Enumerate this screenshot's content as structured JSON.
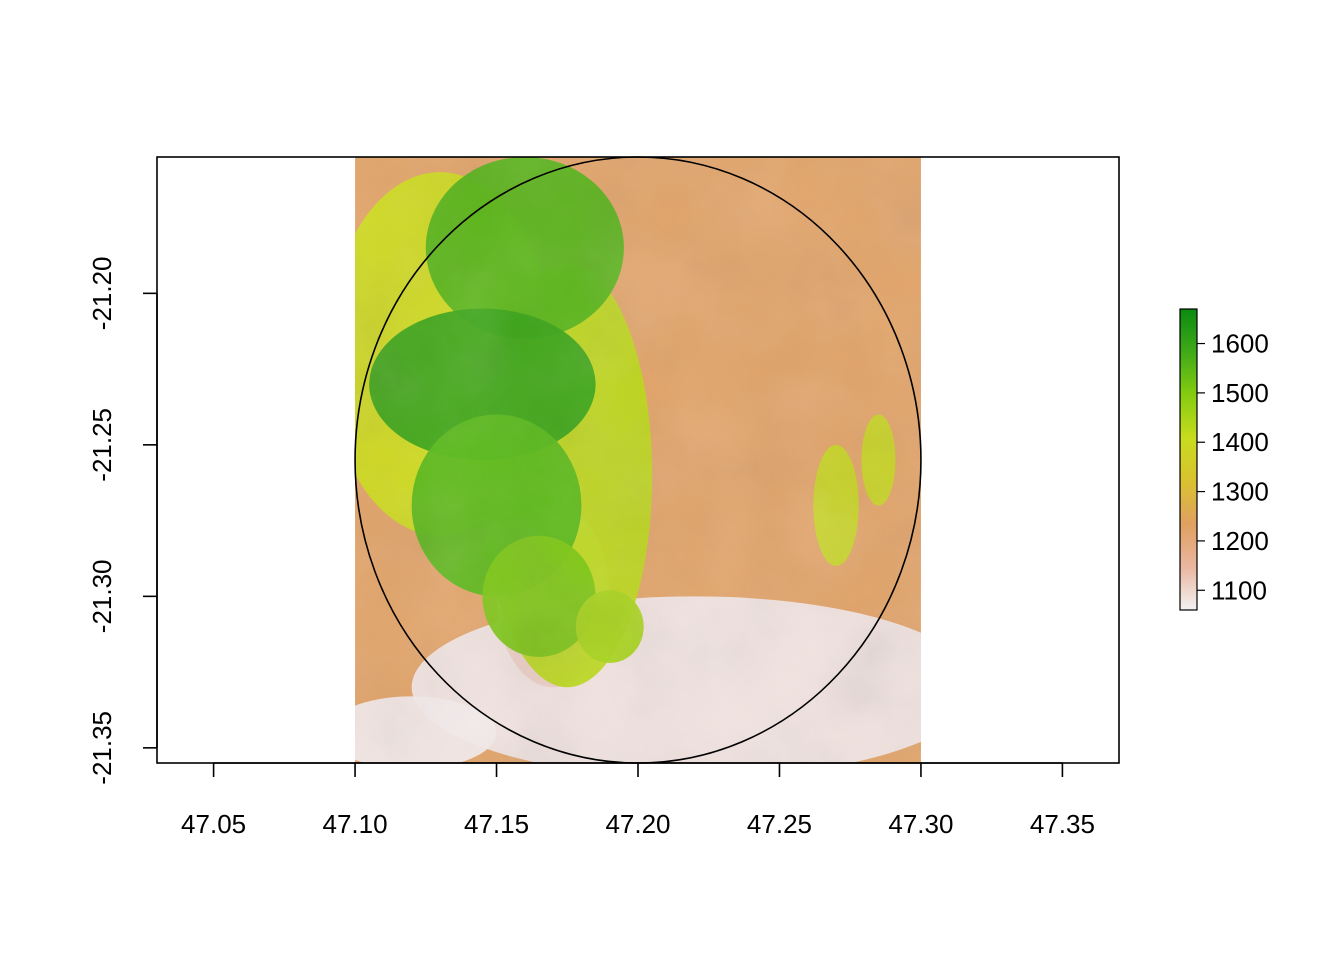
{
  "chart_data": {
    "type": "heatmap",
    "title": "",
    "xlabel": "",
    "ylabel": "",
    "x_ticks": [
      "47.05",
      "47.10",
      "47.15",
      "47.20",
      "47.25",
      "47.30",
      "47.35"
    ],
    "y_ticks": [
      "-21.20",
      "-21.25",
      "-21.30",
      "-21.35"
    ],
    "xlim": [
      47.03,
      47.37
    ],
    "ylim": [
      -21.355,
      -21.155
    ],
    "raster_extent": {
      "xmin": 47.1,
      "xmax": 47.3,
      "ymin": -21.355,
      "ymax": -21.155
    },
    "value_range": [
      1060,
      1670
    ],
    "overlay_circle": {
      "cx": 47.2,
      "cy": -21.255,
      "rx": 0.1,
      "ry": 0.1
    },
    "legend": {
      "position": "right",
      "ticks": [
        "1100",
        "1200",
        "1300",
        "1400",
        "1500",
        "1600"
      ],
      "colors": [
        "#f2f2f2",
        "#eab6a0",
        "#e0a060",
        "#d9c230",
        "#c8dc1e",
        "#86cc10",
        "#3faa18",
        "#0a8a10"
      ]
    },
    "grid": false
  }
}
